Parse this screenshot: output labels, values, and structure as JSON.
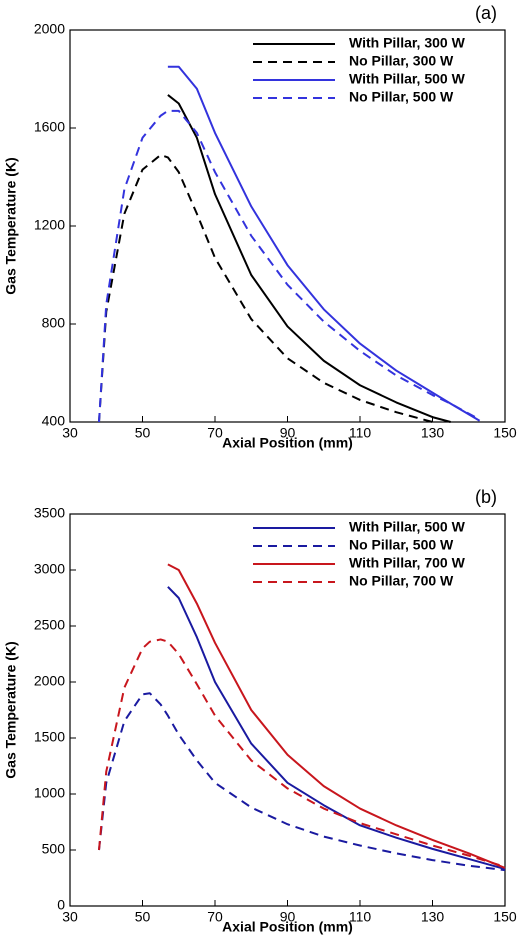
{
  "chart_data": [
    {
      "type": "line",
      "panel_label": "(a)",
      "x_label": "Axial Position (mm)",
      "y_label": "Gas Temperature (K)",
      "xlim": [
        30,
        150
      ],
      "xticks": [
        30,
        50,
        70,
        90,
        110,
        130,
        150
      ],
      "ylim": [
        400,
        2000
      ],
      "yticks": [
        400,
        800,
        1200,
        1600,
        2000
      ],
      "x": [
        38,
        40,
        45,
        50,
        55,
        57,
        60,
        65,
        70,
        80,
        90,
        100,
        110,
        120,
        130,
        135,
        143
      ],
      "series": [
        {
          "name": "With Pillar, 300 W",
          "color": "#000000",
          "dashed": false,
          "values": [
            null,
            null,
            null,
            null,
            null,
            1735,
            1700,
            1560,
            1330,
            1000,
            790,
            650,
            550,
            480,
            420,
            400,
            null
          ]
        },
        {
          "name": "No Pillar, 300 W",
          "color": "#000000",
          "dashed": true,
          "values": [
            400,
            850,
            1250,
            1430,
            1490,
            1480,
            1420,
            1250,
            1070,
            820,
            660,
            560,
            490,
            440,
            400,
            null,
            null
          ]
        },
        {
          "name": "With Pillar, 500 W",
          "color": "#3333dd",
          "dashed": false,
          "values": [
            null,
            null,
            null,
            null,
            null,
            1850,
            1850,
            1760,
            1580,
            1280,
            1040,
            860,
            720,
            610,
            520,
            475,
            405
          ]
        },
        {
          "name": "No Pillar, 500 W",
          "color": "#3333dd",
          "dashed": true,
          "values": [
            400,
            880,
            1350,
            1560,
            1650,
            1670,
            1670,
            1580,
            1420,
            1160,
            960,
            810,
            690,
            590,
            510,
            475,
            410
          ]
        }
      ]
    },
    {
      "type": "line",
      "panel_label": "(b)",
      "x_label": "Axial Position (mm)",
      "y_label": "Gas Temperature (K)",
      "xlim": [
        30,
        150
      ],
      "xticks": [
        30,
        50,
        70,
        90,
        110,
        130,
        150
      ],
      "ylim": [
        0,
        3500
      ],
      "yticks": [
        0,
        500,
        1000,
        1500,
        2000,
        2500,
        3000,
        3500
      ],
      "x": [
        38,
        40,
        45,
        50,
        52,
        55,
        57,
        60,
        65,
        70,
        80,
        90,
        100,
        110,
        120,
        130,
        140,
        150
      ],
      "series": [
        {
          "name": "With Pillar, 500 W",
          "color": "#1a1aa0",
          "dashed": false,
          "values": [
            null,
            null,
            null,
            null,
            null,
            null,
            2850,
            2750,
            2400,
            2000,
            1450,
            1100,
            900,
            720,
            610,
            510,
            420,
            330
          ]
        },
        {
          "name": "No Pillar, 500 W",
          "color": "#1a1aa0",
          "dashed": true,
          "values": [
            500,
            1100,
            1650,
            1890,
            1900,
            1800,
            1700,
            1530,
            1300,
            1100,
            880,
            730,
            620,
            540,
            470,
            410,
            360,
            320
          ]
        },
        {
          "name": "With Pillar, 700 W",
          "color": "#c8161d",
          "dashed": false,
          "values": [
            null,
            null,
            null,
            null,
            null,
            null,
            3050,
            3000,
            2700,
            2350,
            1750,
            1350,
            1070,
            870,
            720,
            590,
            470,
            340
          ]
        },
        {
          "name": "No Pillar, 700 W",
          "color": "#c8161d",
          "dashed": true,
          "values": [
            500,
            1200,
            1950,
            2300,
            2360,
            2380,
            2360,
            2250,
            1980,
            1700,
            1300,
            1050,
            870,
            740,
            640,
            540,
            450,
            350
          ]
        }
      ]
    }
  ]
}
